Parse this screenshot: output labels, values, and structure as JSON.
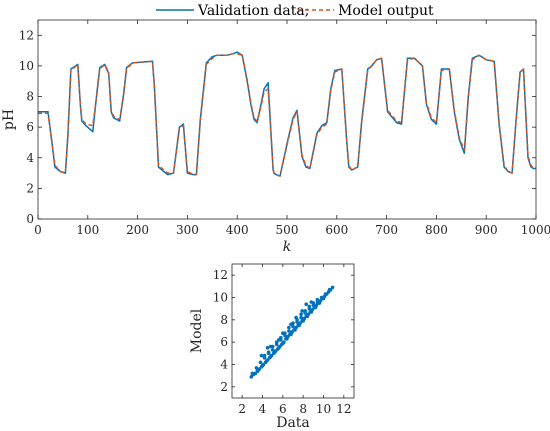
{
  "colors": {
    "validation": "#0072BD",
    "model": "#D95319",
    "axis": "#262626"
  },
  "chart_data": [
    {
      "type": "line",
      "xlabel": "k",
      "ylabel": "pH",
      "xlim": [
        0,
        1000
      ],
      "ylim": [
        0,
        13
      ],
      "xticks": [
        0,
        100,
        200,
        300,
        400,
        500,
        600,
        700,
        800,
        900,
        1000
      ],
      "yticks": [
        0,
        2,
        4,
        6,
        8,
        10,
        12
      ],
      "legend": {
        "placement": "top-center",
        "entries": [
          "Validation data;",
          "Model output"
        ]
      },
      "series": [
        {
          "name": "Validation data;",
          "style": "solid",
          "x": [
            0,
            20,
            28,
            34,
            45,
            55,
            60,
            66,
            80,
            85,
            88,
            96,
            110,
            118,
            124,
            134,
            142,
            147,
            152,
            164,
            172,
            178,
            190,
            230,
            234,
            242,
            260,
            272,
            284,
            292,
            300,
            312,
            318,
            326,
            338,
            350,
            360,
            380,
            392,
            400,
            410,
            420,
            428,
            434,
            440,
            446,
            454,
            462,
            472,
            474,
            478,
            486,
            502,
            512,
            520,
            530,
            538,
            546,
            560,
            570,
            580,
            588,
            596,
            610,
            620,
            624,
            630,
            642,
            650,
            662,
            670,
            680,
            690,
            702,
            720,
            730,
            742,
            756,
            772,
            780,
            790,
            800,
            810,
            826,
            836,
            846,
            856,
            864,
            872,
            886,
            900,
            916,
            926,
            936,
            944,
            952,
            960,
            968,
            975,
            984,
            990,
            995,
            1000
          ],
          "values": [
            7.0,
            7.0,
            5.0,
            3.4,
            3.1,
            3.0,
            5.5,
            9.8,
            10.1,
            7.5,
            6.4,
            6.1,
            5.7,
            8.2,
            9.9,
            10.1,
            9.5,
            7.0,
            6.6,
            6.4,
            8.2,
            9.9,
            10.2,
            10.3,
            8.5,
            3.4,
            2.9,
            3.0,
            6.0,
            6.2,
            3.0,
            2.9,
            2.9,
            6.5,
            10.2,
            10.6,
            10.7,
            10.7,
            10.8,
            10.9,
            10.7,
            9.0,
            7.4,
            6.5,
            6.3,
            7.2,
            8.5,
            8.9,
            3.2,
            3.0,
            2.9,
            2.8,
            5.2,
            6.6,
            7.1,
            4.1,
            3.4,
            3.3,
            5.6,
            6.1,
            6.3,
            8.5,
            9.7,
            9.8,
            5.0,
            3.4,
            3.2,
            3.4,
            6.4,
            9.8,
            10.0,
            10.4,
            10.5,
            7.0,
            6.3,
            6.2,
            10.5,
            10.5,
            10.0,
            7.5,
            6.5,
            6.2,
            9.8,
            9.8,
            7.0,
            5.2,
            4.3,
            8.0,
            10.5,
            10.7,
            10.4,
            10.3,
            6.2,
            3.4,
            3.1,
            3.0,
            6.5,
            9.6,
            9.8,
            4.0,
            3.4,
            3.3,
            3.3
          ]
        },
        {
          "name": "Model output",
          "style": "dashed",
          "x": [
            0,
            20,
            28,
            34,
            45,
            55,
            60,
            66,
            80,
            85,
            88,
            96,
            110,
            118,
            124,
            134,
            142,
            147,
            152,
            164,
            172,
            178,
            190,
            230,
            234,
            242,
            260,
            272,
            284,
            292,
            300,
            312,
            318,
            326,
            338,
            350,
            360,
            380,
            392,
            400,
            410,
            420,
            428,
            434,
            440,
            446,
            454,
            462,
            472,
            474,
            478,
            486,
            502,
            512,
            520,
            530,
            538,
            546,
            560,
            570,
            580,
            588,
            596,
            610,
            620,
            624,
            630,
            642,
            650,
            662,
            670,
            680,
            690,
            702,
            720,
            730,
            742,
            756,
            772,
            780,
            790,
            800,
            810,
            826,
            836,
            846,
            856,
            864,
            872,
            886,
            900,
            916,
            926,
            936,
            944,
            952,
            960,
            968,
            975,
            984,
            990,
            995,
            1000
          ],
          "values": [
            6.9,
            6.9,
            5.1,
            3.5,
            3.1,
            3.0,
            5.4,
            9.7,
            10.1,
            7.6,
            6.5,
            6.2,
            6.1,
            8.1,
            9.8,
            10.1,
            9.6,
            7.1,
            6.7,
            6.5,
            8.1,
            9.8,
            10.2,
            10.3,
            8.6,
            3.5,
            3.0,
            3.0,
            5.9,
            6.1,
            3.1,
            2.9,
            2.9,
            6.4,
            10.1,
            10.5,
            10.7,
            10.7,
            10.8,
            10.8,
            10.7,
            9.1,
            7.5,
            6.6,
            6.4,
            7.1,
            8.3,
            8.5,
            3.3,
            3.0,
            2.9,
            2.8,
            5.1,
            6.5,
            7.0,
            4.2,
            3.5,
            3.3,
            5.5,
            6.0,
            6.2,
            8.4,
            9.6,
            9.8,
            5.1,
            3.5,
            3.2,
            3.4,
            6.3,
            9.7,
            10.0,
            10.4,
            10.5,
            7.1,
            6.4,
            6.3,
            10.4,
            10.5,
            10.0,
            7.6,
            6.6,
            6.3,
            9.7,
            9.8,
            7.1,
            5.3,
            4.5,
            7.9,
            10.4,
            10.7,
            10.4,
            10.3,
            6.3,
            3.5,
            3.1,
            3.0,
            6.4,
            9.5,
            9.8,
            4.1,
            3.5,
            3.3,
            3.3
          ]
        }
      ]
    },
    {
      "type": "scatter",
      "xlabel": "Data",
      "ylabel": "Model",
      "xlim": [
        1,
        13
      ],
      "ylim": [
        1,
        13
      ],
      "xticks": [
        2,
        4,
        6,
        8,
        10,
        12
      ],
      "yticks": [
        2,
        4,
        6,
        8,
        10,
        12
      ],
      "series": [
        {
          "x": [
            2.9,
            3.1,
            3.3,
            3.5,
            3.7,
            3.9,
            4.1,
            4.3,
            4.5,
            4.7,
            4.9,
            5.1,
            5.3,
            5.5,
            5.7,
            5.9,
            6.1,
            6.3,
            6.5,
            6.7,
            6.9,
            7.1,
            7.3,
            7.5,
            7.7,
            7.9,
            8.1,
            8.3,
            8.5,
            8.7,
            8.9,
            9.1,
            9.3,
            9.5,
            9.7,
            9.9,
            10.1,
            10.3,
            10.5,
            10.7,
            10.9,
            3.0,
            3.4,
            3.8,
            4.2,
            4.6,
            5.0,
            5.4,
            5.8,
            6.2,
            6.6,
            7.0,
            7.4,
            7.8,
            8.2,
            8.6,
            9.0,
            9.4,
            9.8,
            10.2,
            10.6,
            3.6,
            4.0,
            4.4,
            4.8,
            5.2,
            5.6,
            6.0,
            6.4,
            6.8,
            7.2,
            7.6,
            8.0,
            8.4,
            8.8,
            9.2,
            9.6,
            10.0,
            4.2,
            4.6,
            5.0,
            5.4,
            5.8,
            6.2,
            6.6,
            7.0,
            7.4,
            7.8,
            8.2,
            8.6,
            9.0,
            9.4,
            3.9,
            4.5,
            5.6,
            6.8,
            7.3,
            7.9,
            8.3,
            8.8,
            9.1,
            6.0,
            4.8
          ],
          "values": [
            2.9,
            3.1,
            3.2,
            3.4,
            3.6,
            3.8,
            4.0,
            4.2,
            4.4,
            4.6,
            4.8,
            5.0,
            5.2,
            5.4,
            5.6,
            5.8,
            6.0,
            6.3,
            6.5,
            6.7,
            6.9,
            7.1,
            7.3,
            7.5,
            7.7,
            7.9,
            8.1,
            8.3,
            8.5,
            8.7,
            8.9,
            9.1,
            9.3,
            9.5,
            9.7,
            9.9,
            10.1,
            10.3,
            10.5,
            10.7,
            10.9,
            3.2,
            3.7,
            4.2,
            4.6,
            5.0,
            5.3,
            5.8,
            6.2,
            6.6,
            7.0,
            7.4,
            7.8,
            8.2,
            8.6,
            9.0,
            9.3,
            9.6,
            10.0,
            10.3,
            10.7,
            3.5,
            3.9,
            4.3,
            4.7,
            5.1,
            5.5,
            5.9,
            6.3,
            6.7,
            7.1,
            7.5,
            7.9,
            8.3,
            8.7,
            9.1,
            9.5,
            9.9,
            4.8,
            5.1,
            5.6,
            6.0,
            6.4,
            6.8,
            7.3,
            7.7,
            8.0,
            8.5,
            8.8,
            9.2,
            9.5,
            9.8,
            4.8,
            5.5,
            6.2,
            7.6,
            8.2,
            8.8,
            9.4,
            9.6,
            9.3,
            6.8,
            5.6
          ]
        }
      ]
    }
  ]
}
